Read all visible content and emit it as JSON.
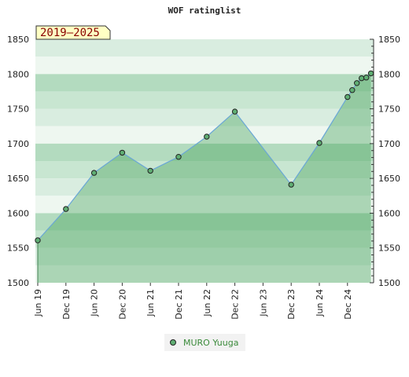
{
  "chart_data": {
    "type": "area",
    "title": "WOF ratinglist",
    "badge": "2019–2025",
    "x_tick_labels": [
      "Jun 19",
      "Dec 19",
      "Jun 20",
      "Dec 20",
      "Jun 21",
      "Dec 21",
      "Jun 22",
      "Dec 22",
      "Jun 23",
      "Dec 23",
      "Jun 24",
      "Dec 24"
    ],
    "ylim": [
      1500,
      1850
    ],
    "y_ticks": [
      1500,
      1550,
      1600,
      1650,
      1700,
      1750,
      1800,
      1850
    ],
    "grid": true,
    "legend_position": "bottom-center",
    "series": [
      {
        "name": "MURO Yuuga",
        "color": "#6aa7d6",
        "marker_color": "#5fae73",
        "points": [
          {
            "x": "2019-06",
            "y": 1561
          },
          {
            "x": "2019-12",
            "y": 1606
          },
          {
            "x": "2020-06",
            "y": 1658
          },
          {
            "x": "2020-12",
            "y": 1687
          },
          {
            "x": "2021-06",
            "y": 1661
          },
          {
            "x": "2021-12",
            "y": 1681
          },
          {
            "x": "2022-06",
            "y": 1710
          },
          {
            "x": "2022-12",
            "y": 1746
          },
          {
            "x": "2023-12",
            "y": 1641
          },
          {
            "x": "2024-06",
            "y": 1701
          },
          {
            "x": "2024-12",
            "y": 1767
          },
          {
            "x": "2025-01",
            "y": 1777
          },
          {
            "x": "2025-02",
            "y": 1787
          },
          {
            "x": "2025-03",
            "y": 1794
          },
          {
            "x": "2025-04",
            "y": 1795
          },
          {
            "x": "2025-05",
            "y": 1801
          }
        ]
      }
    ]
  }
}
